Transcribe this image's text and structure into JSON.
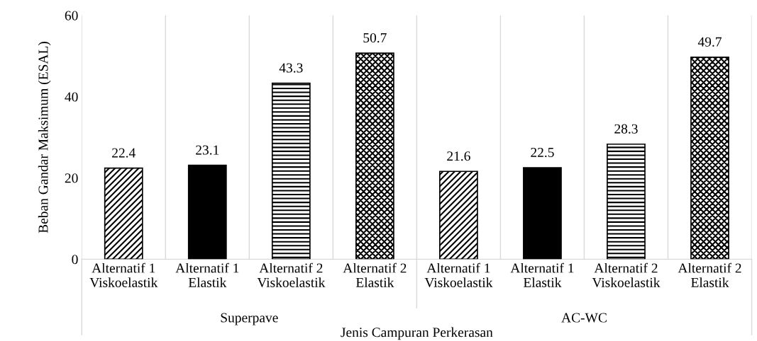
{
  "chart_data": {
    "type": "bar",
    "xlabel": "Jenis Campuran Perkerasan",
    "ylabel": "Beban Gandar Maksimum (ESAL)",
    "categories": [
      "Alternatif 1\nViskoelastik",
      "Alternatif 1\nElastik",
      "Alternatif 2\nViskoelastik",
      "Alternatif 2\nElastik",
      "Alternatif 1\nViskoelastik",
      "Alternatif 1\nElastik",
      "Alternatif 2\nViskoelastik",
      "Alternatif 2\nElastik"
    ],
    "values": [
      22.4,
      23.1,
      43.3,
      50.7,
      21.6,
      22.5,
      28.3,
      49.7
    ],
    "colors": [
      "#000000",
      "#000000",
      "#000000",
      "#000000",
      "#000000",
      "#000000",
      "#000000",
      "#000000"
    ],
    "annotations": [
      "Superpave",
      "AC-WC"
    ],
    "ylim": [
      0,
      60
    ],
    "yticks": [
      0,
      20,
      40,
      60
    ],
    "grid": "x",
    "data_labels": true,
    "legend": false
  }
}
